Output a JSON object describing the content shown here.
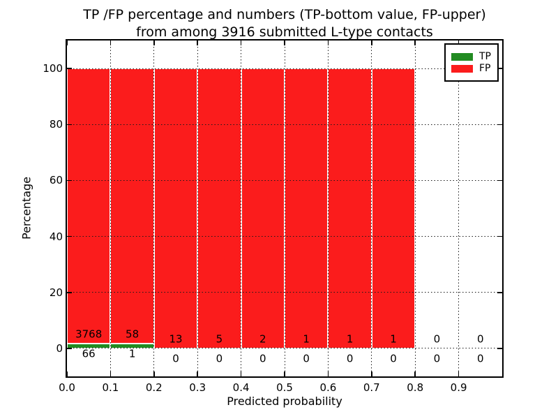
{
  "title": {
    "line1": "TP /FP percentage and numbers (TP-bottom value, FP-upper)",
    "line2": "from among 3916 submitted L-type contacts"
  },
  "axes": {
    "xlabel": "Predicted probability",
    "ylabel": "Percentage",
    "xtick_labels": [
      "0.0",
      "0.1",
      "0.2",
      "0.3",
      "0.4",
      "0.5",
      "0.6",
      "0.7",
      "0.8",
      "0.9"
    ],
    "ytick_values": [
      0,
      20,
      40,
      60,
      80,
      100
    ],
    "xlim": [
      0.0,
      1.0
    ],
    "ylim": [
      -10,
      110
    ],
    "grid_style": "dotted"
  },
  "legend": {
    "position": "upper-right",
    "items": [
      {
        "label": "TP",
        "color": "#228b22"
      },
      {
        "label": "FP",
        "color": "#fb1c1c"
      }
    ]
  },
  "colors": {
    "tp": "#228b22",
    "fp": "#fb1c1c",
    "background": "#ffffff",
    "grid": "#1a1a1a",
    "spine": "#000000",
    "bar_edge": "#ffffff"
  },
  "chart_data": {
    "type": "bar",
    "stacked": true,
    "title": "TP /FP percentage and numbers (TP-bottom value, FP-upper) from among 3916 submitted L-type contacts",
    "xlabel": "Predicted probability",
    "ylabel": "Percentage",
    "xlim": [
      0.0,
      1.0
    ],
    "ylim": [
      -10,
      110
    ],
    "grid": "dotted",
    "legend_position": "upper right",
    "total_contacts": 3916,
    "bin_width": 0.1,
    "categories": [
      "0.0-0.1",
      "0.1-0.2",
      "0.2-0.3",
      "0.3-0.4",
      "0.4-0.5",
      "0.5-0.6",
      "0.6-0.7",
      "0.7-0.8",
      "0.8-0.9",
      "0.9-1.0"
    ],
    "bin_left_edges": [
      0.0,
      0.1,
      0.2,
      0.3,
      0.4,
      0.5,
      0.6,
      0.7,
      0.8,
      0.9
    ],
    "series": [
      {
        "name": "TP",
        "color": "#228b22",
        "counts": [
          66,
          1,
          0,
          0,
          0,
          0,
          0,
          0,
          0,
          0
        ],
        "pct": [
          1.72,
          1.69,
          0,
          0,
          0,
          0,
          0,
          0,
          0,
          0
        ]
      },
      {
        "name": "FP",
        "color": "#fb1c1c",
        "counts": [
          3768,
          58,
          13,
          5,
          2,
          1,
          1,
          1,
          0,
          0
        ],
        "pct": [
          98.28,
          98.31,
          100,
          100,
          100,
          100,
          100,
          100,
          0,
          0
        ]
      }
    ]
  }
}
